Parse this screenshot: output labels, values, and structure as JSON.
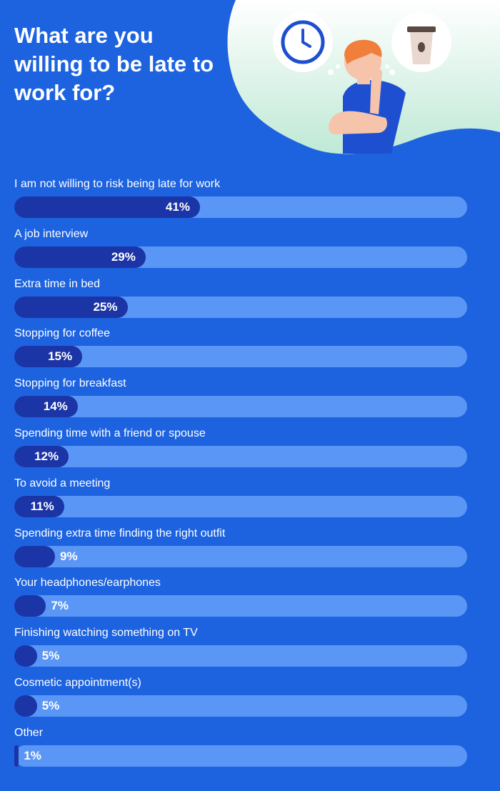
{
  "chart_data": {
    "type": "bar",
    "orientation": "horizontal",
    "title": "What are you willing to be late to work for?",
    "value_suffix": "%",
    "xlim": [
      0,
      100
    ],
    "colors": {
      "background": "#1d63e0",
      "track": "#5a96f5",
      "fill": "#1b34a6",
      "text": "#ffffff"
    },
    "categories": [
      "I am not willing to risk being late for work",
      "A job interview",
      "Extra time in bed",
      "Stopping for coffee",
      "Stopping for breakfast",
      "Spending time with a friend or spouse",
      "To avoid a meeting",
      "Spending extra time finding the right outfit",
      "Your headphones/earphones",
      "Finishing watching something on TV",
      "Cosmetic appointment(s)",
      "Other"
    ],
    "values": [
      41,
      29,
      25,
      15,
      14,
      12,
      11,
      9,
      7,
      5,
      5,
      1
    ]
  },
  "illustration": {
    "icons": [
      "clock-icon",
      "coffee-cup-icon"
    ],
    "figure": "thinking-person"
  }
}
